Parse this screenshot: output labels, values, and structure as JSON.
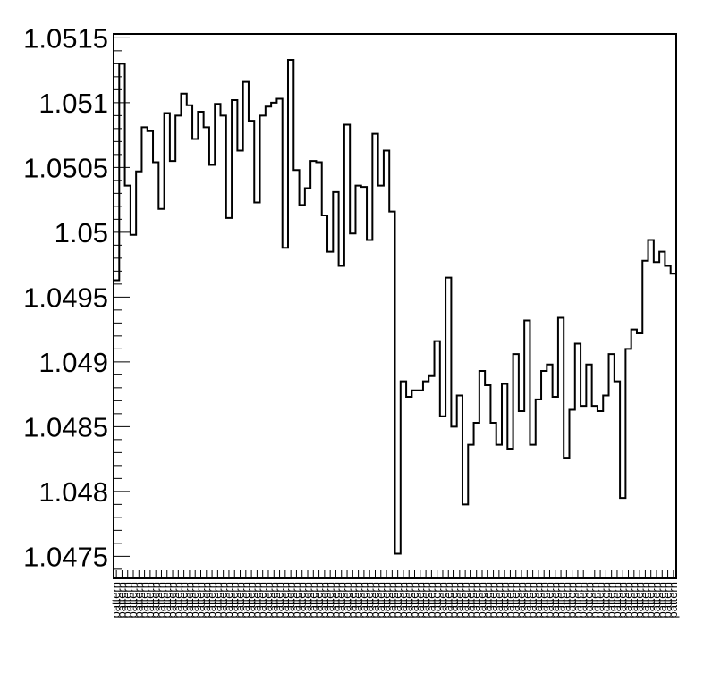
{
  "chart_data": {
    "type": "line",
    "style": "step-histogram",
    "title": "",
    "xlabel": "",
    "ylabel": "",
    "ylim": [
      1.04733,
      1.05153
    ],
    "grid": false,
    "legend": "none",
    "line_color": "#000000",
    "yticks": [
      1.0475,
      1.048,
      1.0485,
      1.049,
      1.0495,
      1.05,
      1.0505,
      1.051,
      1.0515
    ],
    "ytick_labels": [
      "1.0475",
      "1.048",
      "1.0485",
      "1.049",
      "1.0495",
      "1.05",
      "1.0505",
      "1.051",
      "1.0515"
    ],
    "x_category_label": "pattern",
    "series": [
      {
        "values": [
          1.04963,
          1.0513,
          1.05036,
          1.04998,
          1.05047,
          1.05081,
          1.05078,
          1.05054,
          1.05018,
          1.05092,
          1.05055,
          1.0509,
          1.05107,
          1.05098,
          1.05072,
          1.05093,
          1.05081,
          1.05052,
          1.05099,
          1.0509,
          1.05011,
          1.05102,
          1.05063,
          1.05116,
          1.05086,
          1.05023,
          1.0509,
          1.05097,
          1.051,
          1.05103,
          1.04988,
          1.05133,
          1.05048,
          1.05021,
          1.05034,
          1.05055,
          1.05054,
          1.05013,
          1.04985,
          1.05031,
          1.04974,
          1.05083,
          1.04999,
          1.05036,
          1.05035,
          1.04994,
          1.05076,
          1.05036,
          1.05063,
          1.05016,
          1.04752,
          1.04885,
          1.04873,
          1.04878,
          1.04878,
          1.04885,
          1.04889,
          1.04916,
          1.04858,
          1.04965,
          1.0485,
          1.04874,
          1.0479,
          1.04836,
          1.04853,
          1.04893,
          1.04882,
          1.04853,
          1.04836,
          1.04883,
          1.04833,
          1.04906,
          1.04862,
          1.04932,
          1.04836,
          1.04871,
          1.04893,
          1.04898,
          1.04873,
          1.04934,
          1.04826,
          1.04863,
          1.04914,
          1.04866,
          1.04898,
          1.04866,
          1.04862,
          1.04874,
          1.04906,
          1.04885,
          1.04795,
          1.0491,
          1.04925,
          1.04922,
          1.04978,
          1.04994,
          1.04977,
          1.04985,
          1.04974,
          1.04968
        ]
      }
    ]
  }
}
